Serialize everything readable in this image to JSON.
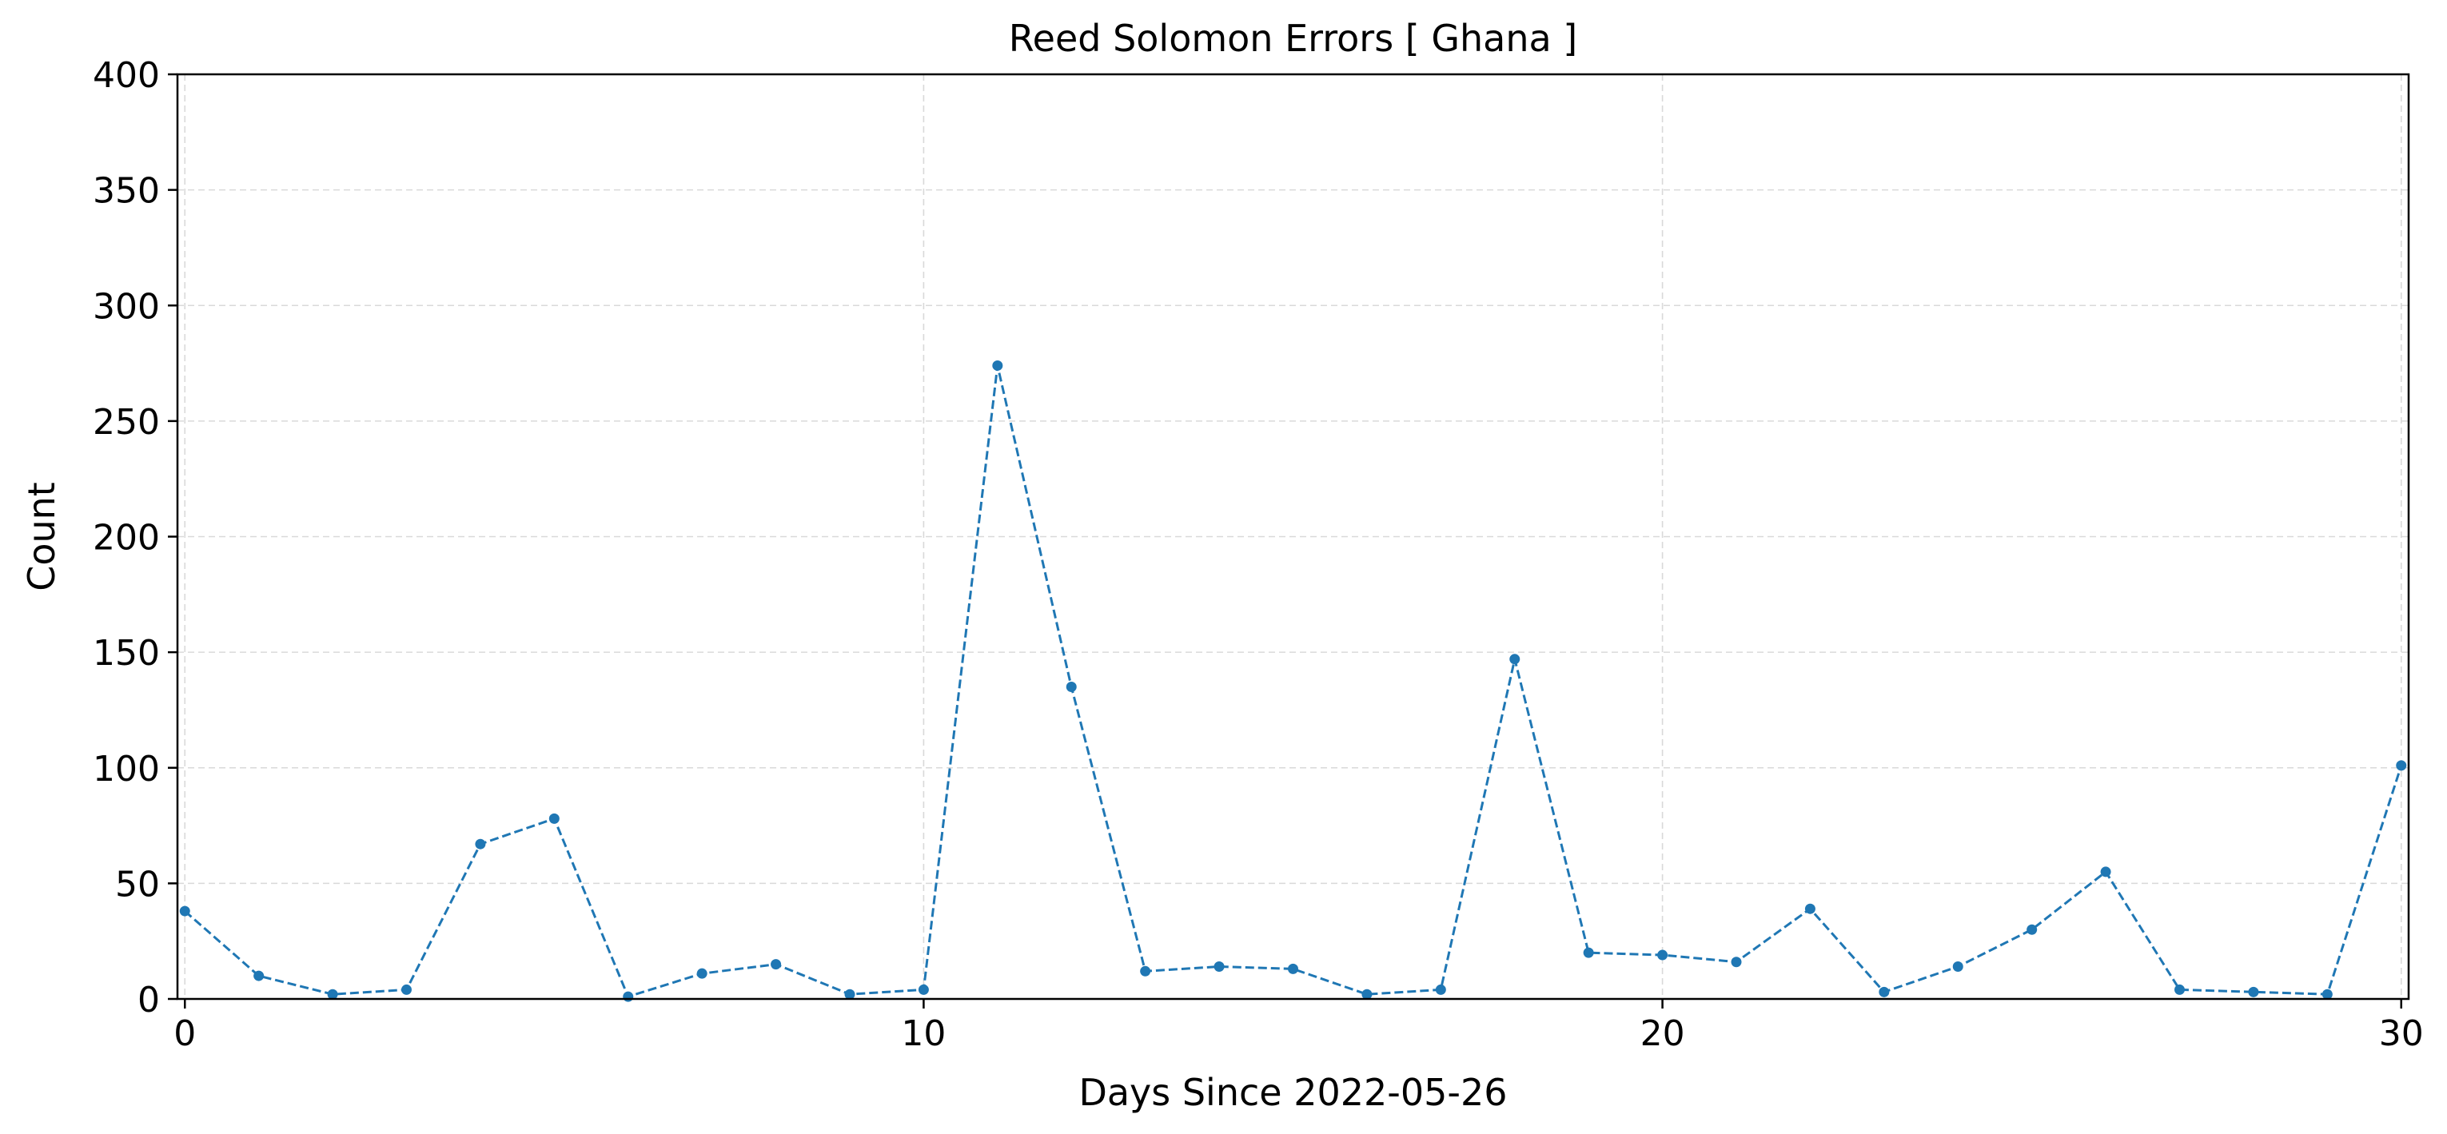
{
  "chart_data": {
    "type": "line",
    "title": "Reed Solomon Errors [ Ghana ]",
    "xlabel": "Days Since 2022-05-26",
    "ylabel": "Count",
    "xlim": [
      -0.1,
      30.1
    ],
    "ylim": [
      0,
      400
    ],
    "xticks": [
      0,
      10,
      20,
      30
    ],
    "yticks": [
      0,
      50,
      100,
      150,
      200,
      250,
      300,
      350,
      400
    ],
    "grid": true,
    "line_style": "dashed",
    "marker": "circle",
    "series_color": "#1f77b4",
    "grid_color": "#d9d9d9",
    "x": [
      0,
      1,
      2,
      3,
      4,
      5,
      6,
      7,
      8,
      9,
      10,
      11,
      12,
      13,
      14,
      15,
      16,
      17,
      18,
      19,
      20,
      21,
      22,
      23,
      24,
      25,
      26,
      27,
      28,
      29,
      30
    ],
    "series": [
      {
        "values": [
          38,
          10,
          2,
          4,
          67,
          78,
          1,
          11,
          15,
          2,
          4,
          274,
          135,
          12,
          14,
          13,
          2,
          4,
          147,
          20,
          19,
          16,
          39,
          3,
          14,
          30,
          55,
          4,
          3,
          2,
          101
        ]
      }
    ]
  }
}
